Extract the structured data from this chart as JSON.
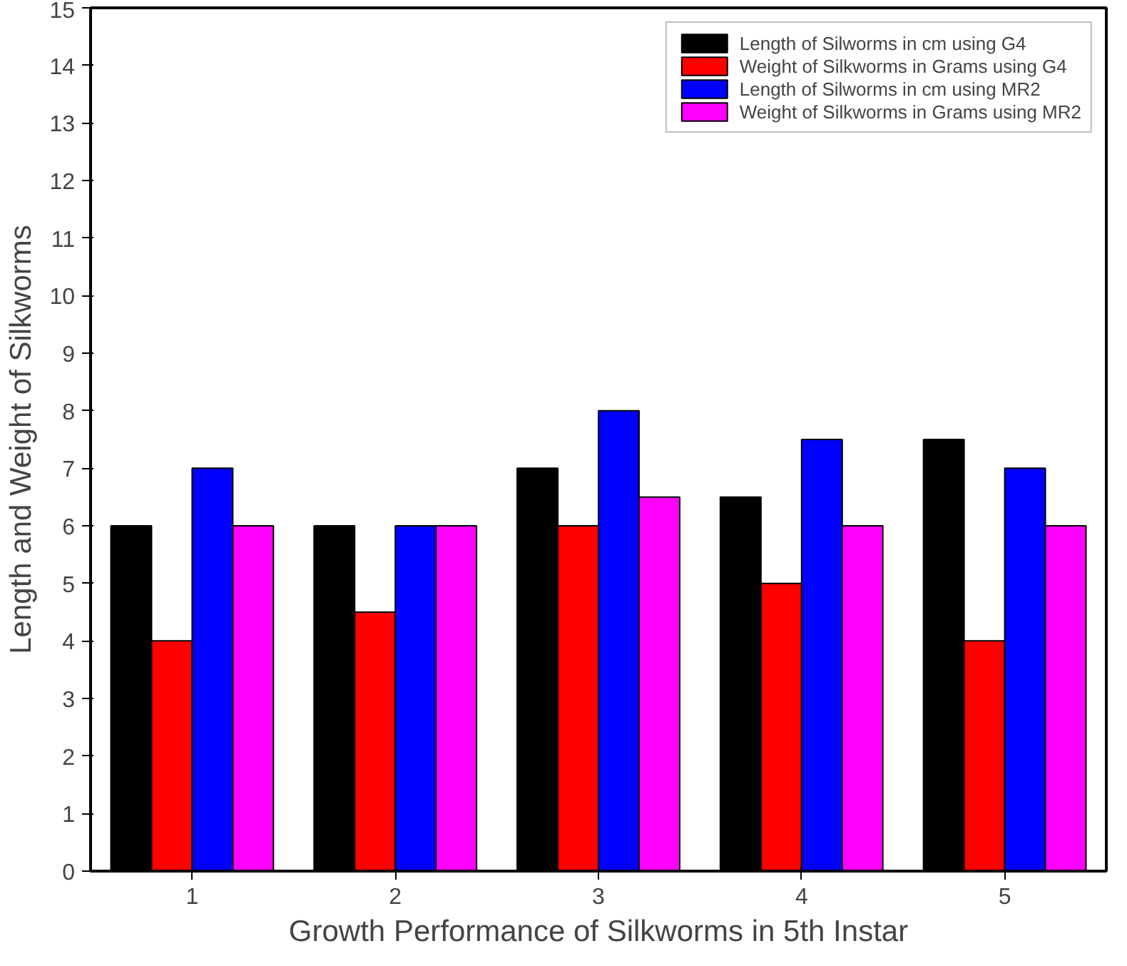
{
  "chart_data": {
    "type": "bar",
    "xlabel": "Growth Performance of Silkworms in 5th Instar",
    "ylabel": "Length and Weight of Silkworms",
    "categories": [
      "1",
      "2",
      "3",
      "4",
      "5"
    ],
    "series": [
      {
        "name": "Length of Silworms in cm using G4",
        "color": "#000000",
        "values": [
          6,
          6,
          7,
          6.5,
          7.5
        ]
      },
      {
        "name": "Weight of Silkworms in Grams using G4",
        "color": "#ff0000",
        "values": [
          4,
          4.5,
          6,
          5,
          4
        ]
      },
      {
        "name": "Length of Silworms in cm using MR2",
        "color": "#0000ff",
        "values": [
          7,
          6,
          8,
          7.5,
          7
        ]
      },
      {
        "name": "Weight of Silkworms in Grams using MR2",
        "color": "#ff00ff",
        "values": [
          6,
          6,
          6.5,
          6,
          6
        ]
      }
    ],
    "ylim": [
      0,
      15
    ],
    "yticks": [
      0,
      1,
      2,
      3,
      4,
      5,
      6,
      7,
      8,
      9,
      10,
      11,
      12,
      13,
      14,
      15
    ],
    "grid": false,
    "legend": "top right"
  }
}
